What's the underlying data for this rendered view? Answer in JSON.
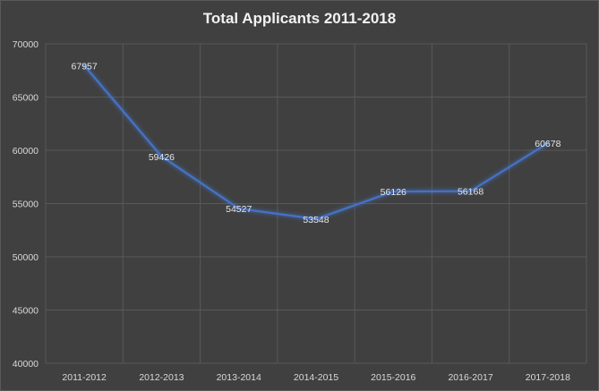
{
  "chart_data": {
    "type": "line",
    "title": "Total Applicants 2011-2018",
    "xlabel": "",
    "ylabel": "",
    "categories": [
      "2011-2012",
      "2012-2013",
      "2013-2014",
      "2014-2015",
      "2015-2016",
      "2016-2017",
      "2017-2018"
    ],
    "series": [
      {
        "values": [
          67957,
          59426,
          54527,
          53548,
          56126,
          56168,
          60678
        ]
      }
    ],
    "data_labels": [
      "67957",
      "59426",
      "54527",
      "53548",
      "56126",
      "56168",
      "60678"
    ],
    "ylim": [
      40000,
      70000
    ],
    "y_ticks": [
      "70000",
      "65000",
      "60000",
      "55000",
      "50000",
      "45000",
      "40000"
    ],
    "grid": true,
    "legend": "none",
    "colors": {
      "background": "#404040",
      "line": "#4472c4",
      "gridline": "#595959",
      "text": "#d9d9d9"
    }
  }
}
